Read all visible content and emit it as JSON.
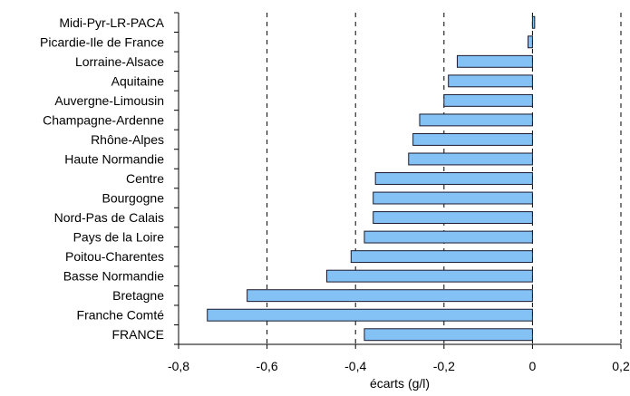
{
  "chart_data": {
    "type": "bar",
    "orientation": "horizontal",
    "title": "",
    "xlabel": "écarts (g/l)",
    "ylabel": "",
    "xlim": [
      -0.8,
      0.2
    ],
    "x_ticks": [
      -0.8,
      -0.6,
      -0.4,
      -0.2,
      0,
      0.2
    ],
    "x_tick_labels": [
      "-0,8",
      "-0,6",
      "-0,4",
      "-0,2",
      "0",
      "0,2"
    ],
    "grid": "vertical dashed",
    "legend": "none",
    "bar_color": "#84c1f5",
    "bar_edge_color": "#1a1a2e",
    "categories": [
      "Midi-Pyr-LR-PACA",
      "Picardie-Ile de France",
      "Lorraine-Alsace",
      "Aquitaine",
      "Auvergne-Limousin",
      "Champagne-Ardenne",
      "Rhône-Alpes",
      "Haute Normandie",
      "Centre",
      "Bourgogne",
      "Nord-Pas de Calais",
      "Pays de la Loire",
      "Poitou-Charentes",
      "Basse Normandie",
      "Bretagne",
      "Franche Comté",
      "FRANCE"
    ],
    "values": [
      0.005,
      -0.01,
      -0.17,
      -0.19,
      -0.2,
      -0.255,
      -0.27,
      -0.28,
      -0.355,
      -0.36,
      -0.36,
      -0.38,
      -0.41,
      -0.465,
      -0.645,
      -0.735,
      -0.38
    ]
  }
}
